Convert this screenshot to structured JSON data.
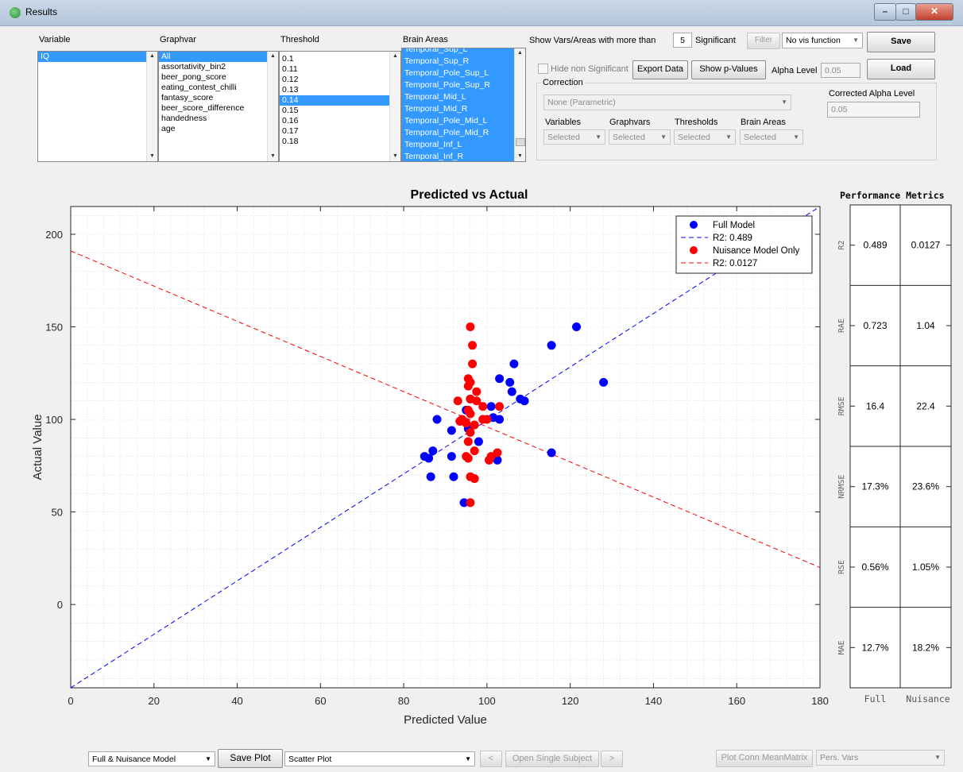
{
  "window": {
    "title": "Results"
  },
  "columns": {
    "variable": "Variable",
    "graphvar": "Graphvar",
    "threshold": "Threshold",
    "brain_areas": "Brain Areas"
  },
  "variable_list": [
    "IQ"
  ],
  "graphvar_list": [
    "All",
    "assortativity_bin2",
    "beer_pong_score",
    "eating_contest_chilli",
    "fantasy_score",
    "beer_score_difference",
    "handedness",
    "age"
  ],
  "threshold_list": [
    "0.1",
    "0.11",
    "0.12",
    "0.13",
    "0.14",
    "0.15",
    "0.16",
    "0.17",
    "0.18"
  ],
  "threshold_selected": "0.14",
  "brain_areas_list": [
    "Temporal_Sup_L",
    "Temporal_Sup_R",
    "Temporal_Pole_Sup_L",
    "Temporal_Pole_Sup_R",
    "Temporal_Mid_L",
    "Temporal_Mid_R",
    "Temporal_Pole_Mid_L",
    "Temporal_Pole_Mid_R",
    "Temporal_Inf_L",
    "Temporal_Inf_R"
  ],
  "controls": {
    "show_vars_label": "Show Vars/Areas with more than",
    "show_vars_value": "5",
    "significant_label": "Significant",
    "filter_button": "Filter",
    "vis_function": "No vis function",
    "save_button": "Save",
    "load_button": "Load",
    "hide_non_significant": "Hide non Significant",
    "export_data": "Export Data",
    "show_p_values": "Show p-Values",
    "alpha_level_label": "Alpha Level",
    "alpha_level_value": "0.05",
    "correction_label": "Correction",
    "correction_method": "None  (Parametric)",
    "corrected_alpha_label": "Corrected Alpha Level",
    "corrected_alpha_value": "0.05",
    "variables_label": "Variables",
    "graphvars_label": "Graphvars",
    "thresholds_label": "Thresholds",
    "brain_areas_label": "Brain Areas",
    "selected": "Selected"
  },
  "bottom": {
    "model_select": "Full & Nuisance Model",
    "save_plot": "Save Plot",
    "plot_type": "Scatter Plot",
    "prev": "<",
    "open_single_subject": "Open Single Subject",
    "next": ">",
    "plot_conn": "Plot Conn MeanMatrix",
    "pers_vars": "Pers. Vars"
  },
  "metrics": {
    "title": "Performance Metrics",
    "columns": [
      "Full",
      "Nuisance"
    ],
    "rows": [
      {
        "name": "R2",
        "full": "0.489",
        "nuisance": "0.0127"
      },
      {
        "name": "RAE",
        "full": "0.723",
        "nuisance": "1.04"
      },
      {
        "name": "RMSE",
        "full": "16.4",
        "nuisance": "22.4"
      },
      {
        "name": "NRMSE",
        "full": "17.3%",
        "nuisance": "23.6%"
      },
      {
        "name": "RSE",
        "full": "0.56%",
        "nuisance": "1.05%"
      },
      {
        "name": "MAE",
        "full": "12.7%",
        "nuisance": "18.2%"
      }
    ]
  },
  "chart_data": {
    "type": "scatter",
    "title": "Predicted vs Actual",
    "xlabel": "Predicted Value",
    "ylabel": "Actual Value",
    "xlim": [
      0,
      180
    ],
    "ylim": [
      -45,
      215
    ],
    "xticks": [
      0,
      20,
      40,
      60,
      80,
      100,
      120,
      140,
      160,
      180
    ],
    "yticks": [
      0,
      50,
      100,
      150,
      200
    ],
    "grid": "minor dotted",
    "legend_position": "top-right",
    "series": [
      {
        "name": "Full Model",
        "color": "#0000ff",
        "points": [
          [
            121.5,
            150
          ],
          [
            115.5,
            140
          ],
          [
            106.5,
            130
          ],
          [
            128,
            120
          ],
          [
            103,
            122
          ],
          [
            105.5,
            120
          ],
          [
            106,
            115
          ],
          [
            108,
            111
          ],
          [
            109,
            110
          ],
          [
            95,
            105
          ],
          [
            101,
            107
          ],
          [
            88,
            100
          ],
          [
            101.5,
            101
          ],
          [
            103,
            100
          ],
          [
            93.5,
            99
          ],
          [
            91.5,
            94
          ],
          [
            95.5,
            95
          ],
          [
            98,
            88
          ],
          [
            87,
            83
          ],
          [
            85,
            80
          ],
          [
            86,
            79
          ],
          [
            91.5,
            80
          ],
          [
            102.5,
            78
          ],
          [
            86.5,
            69
          ],
          [
            92,
            69
          ],
          [
            115.5,
            82
          ],
          [
            94.5,
            55
          ],
          [
            96,
            111
          ]
        ]
      },
      {
        "name": "Nuisance Model Only",
        "color": "#ff0000",
        "points": [
          [
            96,
            150
          ],
          [
            96.5,
            140
          ],
          [
            96.5,
            130
          ],
          [
            95.5,
            122
          ],
          [
            96,
            120
          ],
          [
            95.5,
            118
          ],
          [
            97.5,
            115
          ],
          [
            96,
            111
          ],
          [
            93,
            110
          ],
          [
            97.5,
            110
          ],
          [
            99,
            107
          ],
          [
            103,
            107
          ],
          [
            95.5,
            105
          ],
          [
            96,
            103
          ],
          [
            94,
            100
          ],
          [
            99,
            100
          ],
          [
            100,
            100
          ],
          [
            95,
            98
          ],
          [
            93.5,
            99
          ],
          [
            97,
            97
          ],
          [
            96,
            93
          ],
          [
            95.5,
            88
          ],
          [
            97,
            83
          ],
          [
            101,
            80
          ],
          [
            102.5,
            82
          ],
          [
            100.5,
            78
          ],
          [
            95,
            80
          ],
          [
            95.5,
            79
          ],
          [
            96,
            69
          ],
          [
            97,
            68
          ],
          [
            96,
            55
          ]
        ]
      }
    ],
    "fit_lines": [
      {
        "name": "R2: 0.489",
        "color": "#0000ff",
        "style": "dashed",
        "x": [
          0,
          180
        ],
        "y": [
          -45,
          215
        ]
      },
      {
        "name": "R2: 0.0127",
        "color": "#ff0000",
        "style": "dashed",
        "x": [
          0,
          180
        ],
        "y": [
          191,
          20
        ]
      }
    ]
  }
}
